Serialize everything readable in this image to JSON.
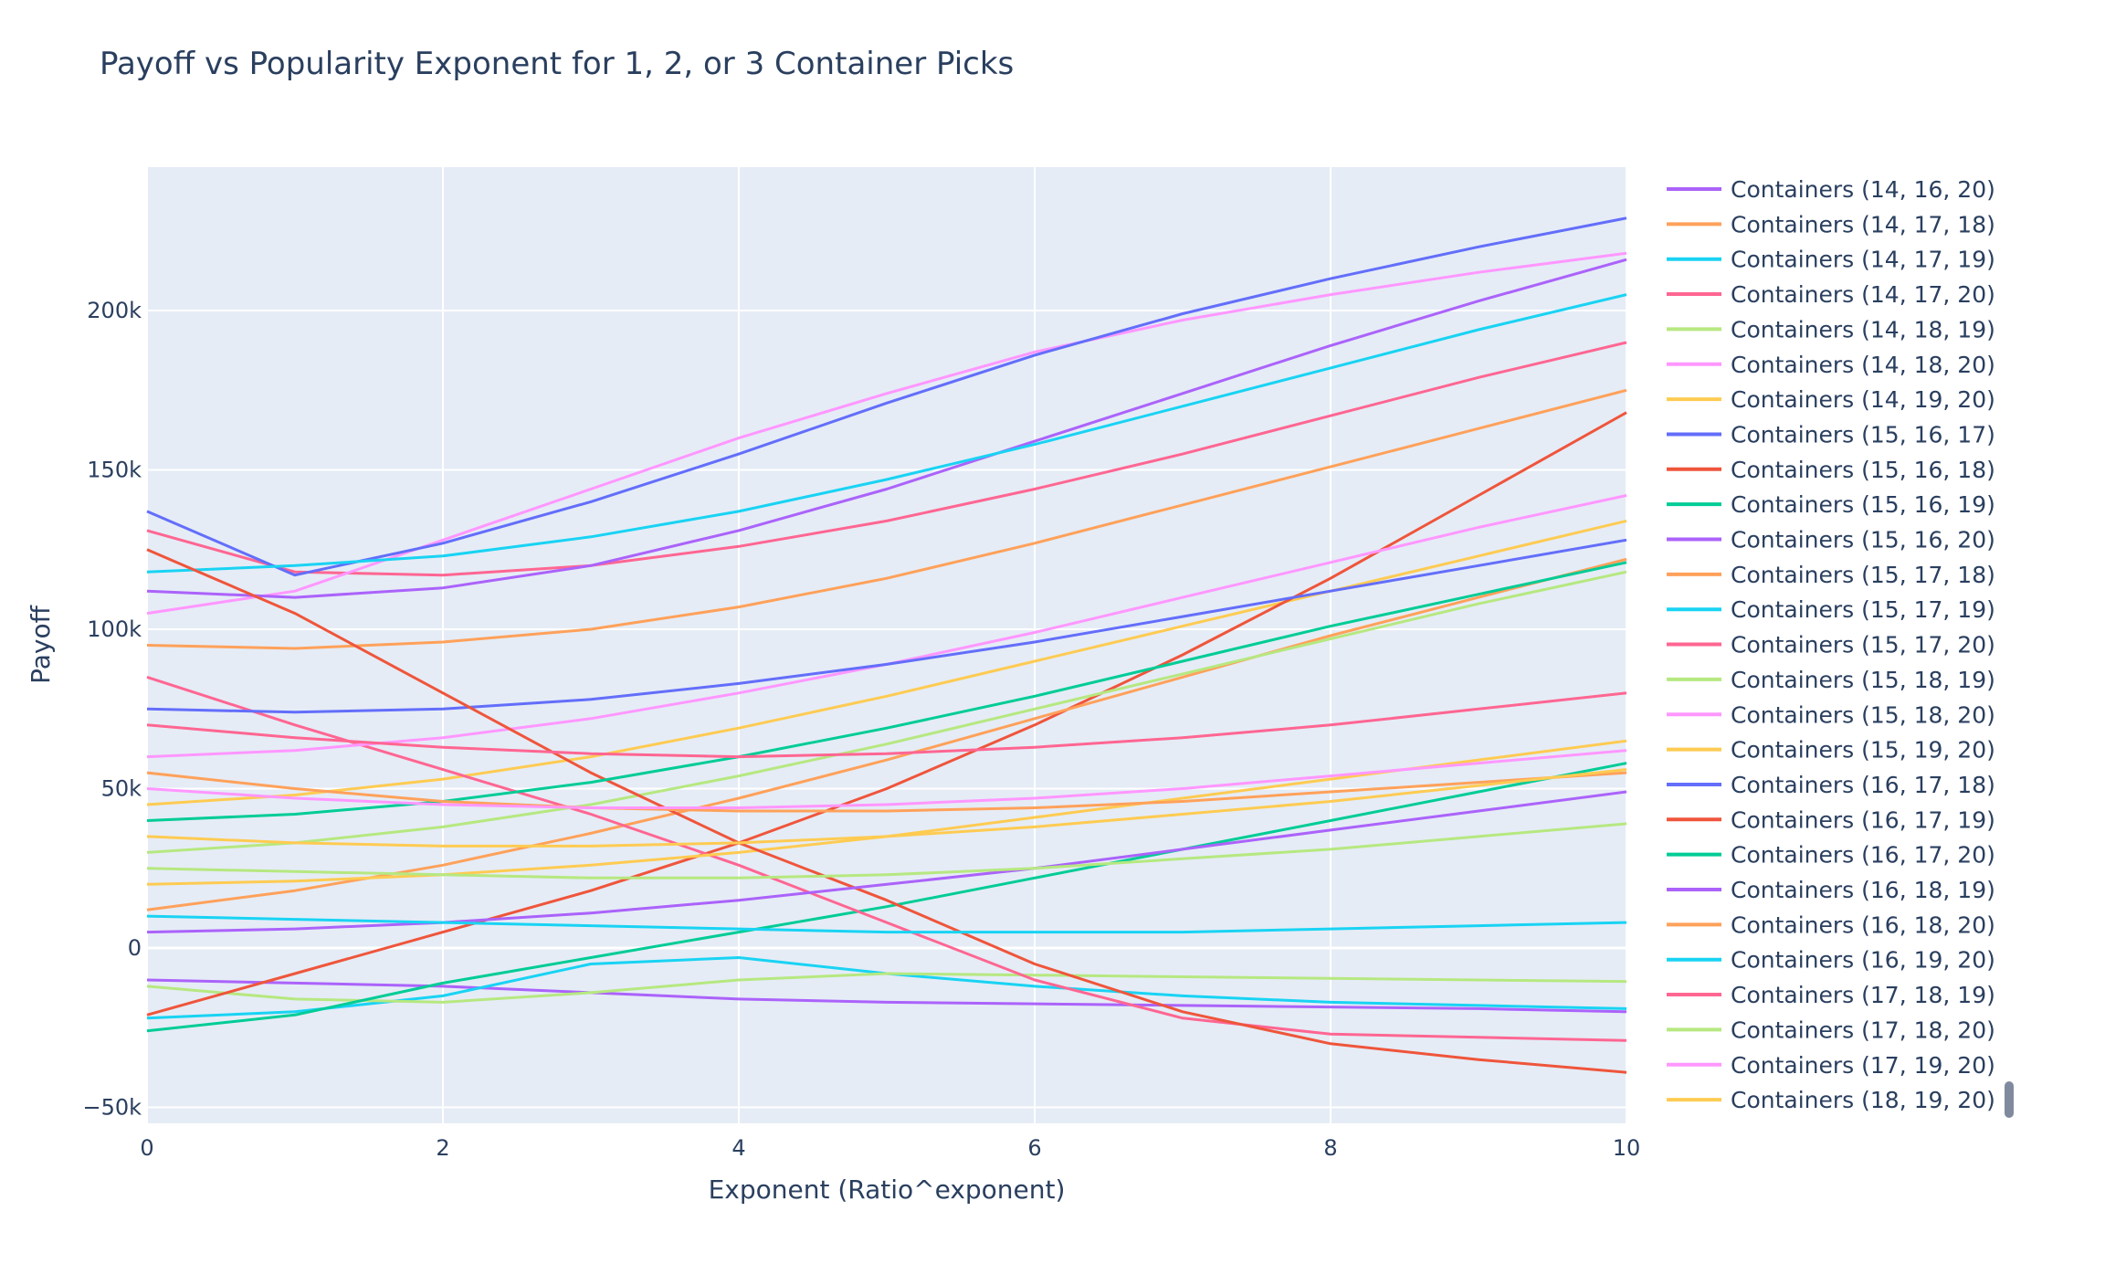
{
  "chart_data": {
    "type": "line",
    "title": "Payoff vs Popularity Exponent for 1, 2, or 3 Container Picks",
    "xlabel": "Exponent (Ratio^exponent)",
    "ylabel": "Payoff",
    "xlim": [
      0,
      10
    ],
    "ylim": [
      -55000,
      245000
    ],
    "x": [
      0,
      1,
      2,
      3,
      4,
      5,
      6,
      7,
      8,
      9,
      10
    ],
    "x_ticks": [
      0,
      2,
      4,
      6,
      8,
      10
    ],
    "x_tick_labels": [
      "0",
      "2",
      "4",
      "6",
      "8",
      "10"
    ],
    "y_ticks": [
      -50000,
      0,
      50000,
      100000,
      150000,
      200000
    ],
    "y_tick_labels": [
      "−50k",
      "0",
      "50k",
      "100k",
      "150k",
      "200k"
    ],
    "grid": true,
    "legend_position": "right",
    "legend_scrollable": true,
    "plot_background": "#e5ecf6",
    "grid_color": "#ffffff",
    "series": [
      {
        "name": "Containers (14, 16, 20)",
        "color": "#ab63fa",
        "values": [
          -10000,
          -11000,
          -12000,
          -14000,
          -16000,
          -17000,
          -17500,
          -18000,
          -18500,
          -19000,
          -20000
        ]
      },
      {
        "name": "Containers (14, 17, 18)",
        "color": "#ffa15a",
        "values": [
          95000,
          94000,
          96000,
          100000,
          107000,
          116000,
          127000,
          139000,
          151000,
          163000,
          175000
        ]
      },
      {
        "name": "Containers (14, 17, 19)",
        "color": "#19d3f3",
        "values": [
          -22000,
          -20000,
          -15000,
          -5000,
          -3000,
          -8000,
          -12000,
          -15000,
          -17000,
          -18000,
          -19000
        ]
      },
      {
        "name": "Containers (14, 17, 20)",
        "color": "#ff6692",
        "values": [
          131000,
          118000,
          117000,
          120000,
          126000,
          134000,
          144000,
          155000,
          167000,
          179000,
          190000
        ]
      },
      {
        "name": "Containers (14, 18, 19)",
        "color": "#b6e880",
        "values": [
          -12000,
          -16000,
          -17000,
          -14000,
          -10000,
          -8000,
          -8500,
          -9000,
          -9500,
          -10000,
          -10500
        ]
      },
      {
        "name": "Containers (14, 18, 20)",
        "color": "#ff97ff",
        "values": [
          105000,
          112000,
          128000,
          144000,
          160000,
          174000,
          187000,
          197000,
          205000,
          212000,
          218000
        ]
      },
      {
        "name": "Containers (14, 19, 20)",
        "color": "#fecb52",
        "values": [
          45000,
          48000,
          53000,
          60000,
          69000,
          79000,
          90000,
          101000,
          112000,
          123000,
          134000
        ]
      },
      {
        "name": "Containers (15, 16, 17)",
        "color": "#636efa",
        "values": [
          137000,
          117000,
          127000,
          140000,
          155000,
          171000,
          186000,
          199000,
          210000,
          220000,
          229000
        ]
      },
      {
        "name": "Containers (15, 16, 18)",
        "color": "#ef553b",
        "values": [
          -21000,
          -8000,
          5000,
          18000,
          33000,
          50000,
          70000,
          92000,
          116000,
          142000,
          168000
        ]
      },
      {
        "name": "Containers (15, 16, 19)",
        "color": "#00cc96",
        "values": [
          -26000,
          -21000,
          -11000,
          -3000,
          5000,
          13000,
          22000,
          31000,
          40000,
          49000,
          58000
        ]
      },
      {
        "name": "Containers (15, 16, 20)",
        "color": "#ab63fa",
        "values": [
          112000,
          110000,
          113000,
          120000,
          131000,
          144000,
          159000,
          174000,
          189000,
          203000,
          216000
        ]
      },
      {
        "name": "Containers (15, 17, 18)",
        "color": "#ffa15a",
        "values": [
          12000,
          18000,
          26000,
          36000,
          47000,
          59000,
          72000,
          85000,
          98000,
          110000,
          122000
        ]
      },
      {
        "name": "Containers (15, 17, 19)",
        "color": "#19d3f3",
        "values": [
          118000,
          120000,
          123000,
          129000,
          137000,
          147000,
          158000,
          170000,
          182000,
          194000,
          205000
        ]
      },
      {
        "name": "Containers (15, 17, 20)",
        "color": "#ff6692",
        "values": [
          85000,
          70000,
          56000,
          42000,
          26000,
          8000,
          -10000,
          -22000,
          -27000,
          -28000,
          -29000
        ]
      },
      {
        "name": "Containers (15, 18, 19)",
        "color": "#b6e880",
        "values": [
          30000,
          33000,
          38000,
          45000,
          54000,
          64000,
          75000,
          86000,
          97000,
          108000,
          118000
        ]
      },
      {
        "name": "Containers (15, 18, 20)",
        "color": "#ff97ff",
        "values": [
          60000,
          62000,
          66000,
          72000,
          80000,
          89000,
          99000,
          110000,
          121000,
          132000,
          142000
        ]
      },
      {
        "name": "Containers (15, 19, 20)",
        "color": "#fecb52",
        "values": [
          20000,
          21000,
          23000,
          26000,
          30000,
          35000,
          41000,
          47000,
          53000,
          59000,
          65000
        ]
      },
      {
        "name": "Containers (16, 17, 18)",
        "color": "#636efa",
        "values": [
          75000,
          74000,
          75000,
          78000,
          83000,
          89000,
          96000,
          104000,
          112000,
          120000,
          128000
        ]
      },
      {
        "name": "Containers (16, 17, 19)",
        "color": "#ef553b",
        "values": [
          125000,
          105000,
          80000,
          55000,
          33000,
          15000,
          -5000,
          -20000,
          -30000,
          -35000,
          -39000
        ]
      },
      {
        "name": "Containers (16, 17, 20)",
        "color": "#00cc96",
        "values": [
          40000,
          42000,
          46000,
          52000,
          60000,
          69000,
          79000,
          90000,
          101000,
          111000,
          121000
        ]
      },
      {
        "name": "Containers (16, 18, 19)",
        "color": "#ab63fa",
        "values": [
          5000,
          6000,
          8000,
          11000,
          15000,
          20000,
          25000,
          31000,
          37000,
          43000,
          49000
        ]
      },
      {
        "name": "Containers (16, 18, 20)",
        "color": "#ffa15a",
        "values": [
          55000,
          50000,
          46000,
          44000,
          43000,
          43000,
          44000,
          46000,
          49000,
          52000,
          55000
        ]
      },
      {
        "name": "Containers (16, 19, 20)",
        "color": "#19d3f3",
        "values": [
          10000,
          9000,
          8000,
          7000,
          6000,
          5000,
          5000,
          5000,
          6000,
          7000,
          8000
        ]
      },
      {
        "name": "Containers (17, 18, 19)",
        "color": "#ff6692",
        "values": [
          70000,
          66000,
          63000,
          61000,
          60000,
          61000,
          63000,
          66000,
          70000,
          75000,
          80000
        ]
      },
      {
        "name": "Containers (17, 18, 20)",
        "color": "#b6e880",
        "values": [
          25000,
          24000,
          23000,
          22000,
          22000,
          23000,
          25000,
          28000,
          31000,
          35000,
          39000
        ]
      },
      {
        "name": "Containers (17, 19, 20)",
        "color": "#ff97ff",
        "values": [
          50000,
          47000,
          45000,
          44000,
          44000,
          45000,
          47000,
          50000,
          54000,
          58000,
          62000
        ]
      },
      {
        "name": "Containers (18, 19, 20)",
        "color": "#fecb52",
        "values": [
          35000,
          33000,
          32000,
          32000,
          33000,
          35000,
          38000,
          42000,
          46000,
          51000,
          56000
        ]
      }
    ]
  }
}
